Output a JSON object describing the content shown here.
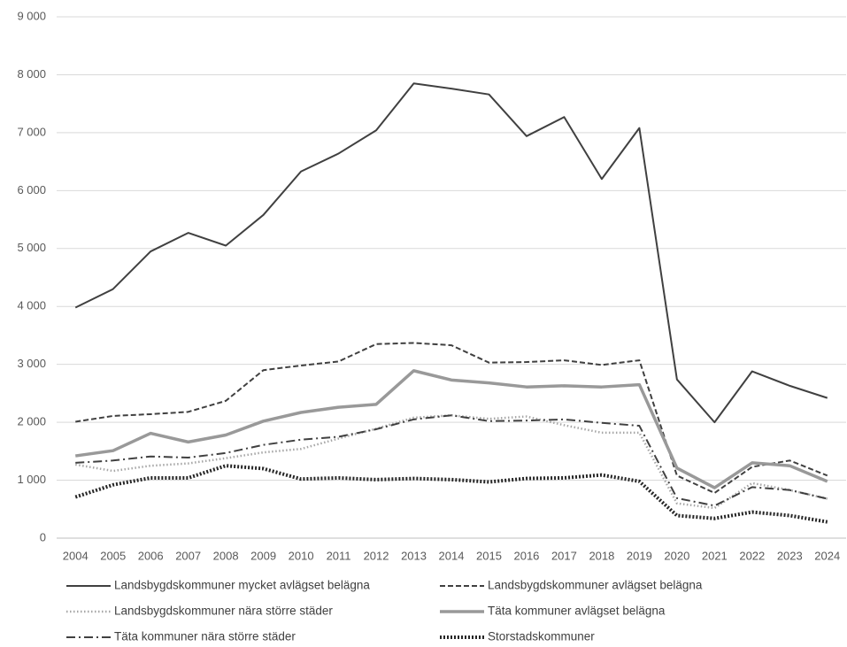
{
  "chart_data": {
    "type": "line",
    "categories": [
      "2004",
      "2005",
      "2006",
      "2007",
      "2008",
      "2009",
      "2010",
      "2011",
      "2012",
      "2013",
      "2014",
      "2015",
      "2016",
      "2017",
      "2018",
      "2019",
      "2020",
      "2021",
      "2022",
      "2023",
      "2024"
    ],
    "ylim": [
      0,
      9000
    ],
    "yticks": [
      {
        "value": 0,
        "label": "0"
      },
      {
        "value": 1000,
        "label": "1 000"
      },
      {
        "value": 2000,
        "label": "2 000"
      },
      {
        "value": 3000,
        "label": "3 000"
      },
      {
        "value": 4000,
        "label": "4 000"
      },
      {
        "value": 5000,
        "label": "5 000"
      },
      {
        "value": 6000,
        "label": "6 000"
      },
      {
        "value": 7000,
        "label": "7 000"
      },
      {
        "value": 8000,
        "label": "8 000"
      },
      {
        "value": 9000,
        "label": "9 000"
      }
    ],
    "grid": true,
    "legend": "bottom",
    "series": [
      {
        "name": "Landsbygdskommuner mycket avlägset belägna",
        "color": "#404040",
        "dash": "solid",
        "linewidth": 2,
        "values": [
          3980,
          4300,
          4950,
          5270,
          5050,
          5580,
          6330,
          6640,
          7040,
          7850,
          7760,
          7660,
          6940,
          7270,
          6200,
          7080,
          2740,
          2000,
          2880,
          2630,
          2420
        ]
      },
      {
        "name": "Landsbygdskommuner avlägset belägna",
        "color": "#404040",
        "dash": "dashed",
        "linewidth": 2,
        "values": [
          2010,
          2110,
          2140,
          2180,
          2370,
          2900,
          2980,
          3050,
          3350,
          3370,
          3330,
          3030,
          3040,
          3070,
          2990,
          3070,
          1080,
          780,
          1230,
          1340,
          1080
        ]
      },
      {
        "name": "Landsbygdskommuner nära större städer",
        "color": "#a6a6a6",
        "dash": "dotted",
        "linewidth": 2.5,
        "values": [
          1270,
          1160,
          1250,
          1290,
          1380,
          1480,
          1540,
          1720,
          1890,
          2080,
          2120,
          2060,
          2100,
          1950,
          1820,
          1820,
          600,
          520,
          950,
          830,
          680
        ]
      },
      {
        "name": "Täta kommuner avlägset belägna",
        "color": "#999999",
        "dash": "solid",
        "linewidth": 3.5,
        "values": [
          1420,
          1510,
          1810,
          1660,
          1780,
          2020,
          2170,
          2260,
          2310,
          2890,
          2730,
          2680,
          2610,
          2630,
          2610,
          2650,
          1210,
          870,
          1300,
          1250,
          980
        ]
      },
      {
        "name": "Täta kommuner nära större städer",
        "color": "#404040",
        "dash": "dashdot",
        "linewidth": 2,
        "values": [
          1300,
          1340,
          1410,
          1390,
          1470,
          1610,
          1700,
          1750,
          1880,
          2050,
          2120,
          2020,
          2030,
          2050,
          1990,
          1940,
          690,
          560,
          880,
          830,
          680
        ]
      },
      {
        "name": "Storstadskommuner",
        "color": "#262626",
        "dash": "dotted",
        "linewidth": 4,
        "values": [
          710,
          920,
          1040,
          1040,
          1250,
          1200,
          1020,
          1040,
          1010,
          1030,
          1010,
          970,
          1030,
          1040,
          1090,
          980,
          390,
          340,
          450,
          390,
          280
        ]
      }
    ]
  }
}
